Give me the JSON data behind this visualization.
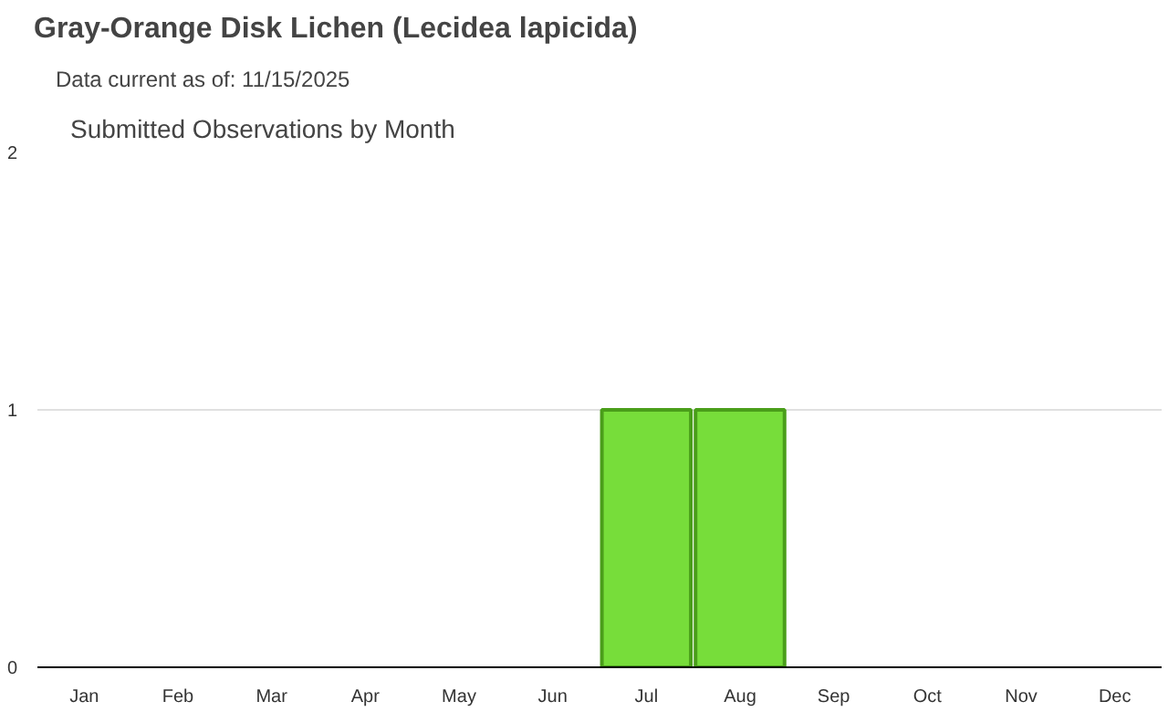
{
  "chart_data": {
    "type": "bar",
    "title": "Gray-Orange Disk Lichen   (Lecidea lapicida)",
    "subtitle": "Data current as of: 11/15/2025",
    "annotations": [
      "Submitted Observations by Month"
    ],
    "categories": [
      "Jan",
      "Feb",
      "Mar",
      "Apr",
      "May",
      "Jun",
      "Jul",
      "Aug",
      "Sep",
      "Oct",
      "Nov",
      "Dec"
    ],
    "values": [
      0,
      0,
      0,
      0,
      0,
      0,
      1,
      1,
      0,
      0,
      0,
      0
    ],
    "color": "#77dd3a",
    "ylim": [
      0,
      2
    ],
    "yticks": [
      0,
      1,
      2
    ],
    "grid": "y"
  }
}
